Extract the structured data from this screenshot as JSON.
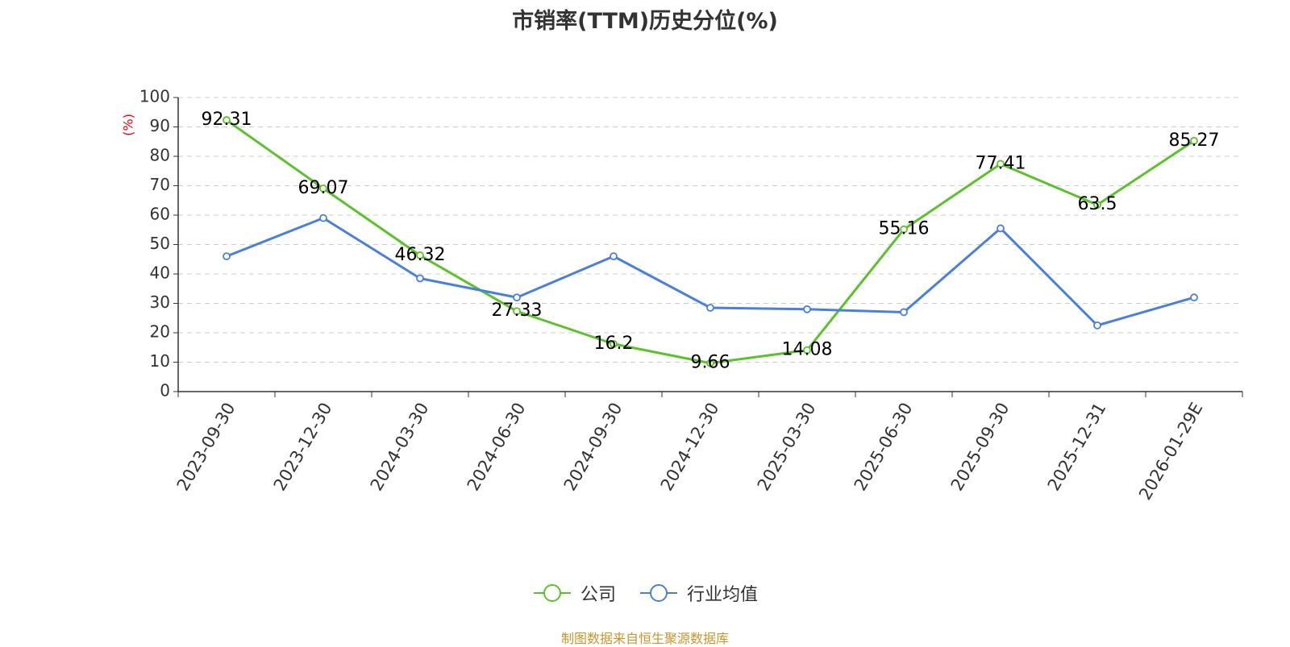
{
  "chart_data": {
    "type": "line",
    "title": "市销率(TTM)历史分位(%)",
    "ylabel": "(%)",
    "xlabel": "",
    "ylim": [
      0,
      100
    ],
    "yticks": [
      0,
      10,
      20,
      30,
      40,
      50,
      60,
      70,
      80,
      90,
      100
    ],
    "categories": [
      "2023-09-30",
      "2023-12-30",
      "2024-03-30",
      "2024-06-30",
      "2024-09-30",
      "2024-12-30",
      "2025-03-30",
      "2025-06-30",
      "2025-09-30",
      "2025-12-31",
      "2026-01-29E"
    ],
    "grid": true,
    "legend_position": "bottom-center",
    "series": [
      {
        "name": "公司",
        "color": "#5cc22a",
        "values": [
          92.31,
          69.07,
          46.32,
          27.33,
          16.2,
          9.66,
          14.08,
          55.16,
          77.41,
          63.5,
          85.27
        ],
        "labels": [
          "92.31",
          "69.07",
          "46.32",
          "27.33",
          "16.2",
          "9.66",
          "14.08",
          "55.16",
          "77.41",
          "63.5",
          "85.27"
        ]
      },
      {
        "name": "行业均值",
        "color": "#4a7fdc",
        "values": [
          46,
          59,
          38.5,
          32,
          46,
          28.5,
          28,
          27,
          55.5,
          22.5,
          32
        ]
      }
    ]
  },
  "source": "制图数据来自恒生聚源数据库"
}
